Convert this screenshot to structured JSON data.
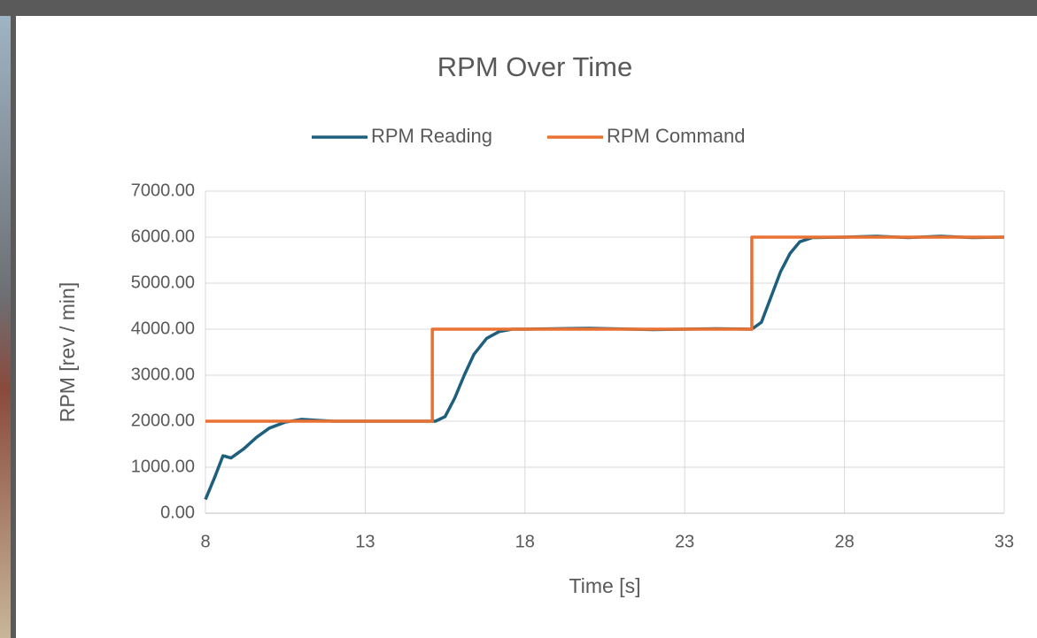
{
  "chart_data": {
    "type": "line",
    "title": "RPM Over Time",
    "x_label": "Time [s]",
    "y_label": "RPM [rev / min]",
    "xlim": [
      8,
      33
    ],
    "xticks": [
      8,
      13,
      18,
      23,
      28,
      33
    ],
    "ylim": [
      0,
      7000
    ],
    "yticks": [
      {
        "value": 0,
        "label": "0.00"
      },
      {
        "value": 1000,
        "label": "1000.00"
      },
      {
        "value": 2000,
        "label": "2000.00"
      },
      {
        "value": 3000,
        "label": "3000.00"
      },
      {
        "value": 4000,
        "label": "4000.00"
      },
      {
        "value": 5000,
        "label": "5000.00"
      },
      {
        "value": 6000,
        "label": "6000.00"
      },
      {
        "value": 7000,
        "label": "7000.00"
      }
    ],
    "grid": true,
    "legend": "top",
    "series": [
      {
        "name": "RPM Reading",
        "color": "#1d5f7c",
        "x": [
          8,
          8.3,
          8.55,
          8.8,
          9.2,
          9.6,
          10,
          10.5,
          11,
          11.5,
          12,
          14,
          15.2,
          15.5,
          15.8,
          16.1,
          16.4,
          16.8,
          17.2,
          17.6,
          18,
          20,
          22,
          24,
          25.1,
          25.4,
          25.7,
          26,
          26.3,
          26.6,
          27,
          28,
          29,
          30,
          31,
          32,
          33
        ],
        "values": [
          300,
          800,
          1250,
          1200,
          1400,
          1650,
          1850,
          1980,
          2040,
          2020,
          2000,
          2000,
          2000,
          2100,
          2500,
          3000,
          3450,
          3800,
          3950,
          4000,
          4000,
          4020,
          3990,
          4010,
          4000,
          4150,
          4700,
          5250,
          5650,
          5900,
          5990,
          6000,
          6020,
          5990,
          6020,
          5990,
          6000
        ]
      },
      {
        "name": "RPM Command",
        "color": "#e97132",
        "x": [
          8,
          15.1,
          15.1,
          25.1,
          25.1,
          33
        ],
        "values": [
          2000,
          2000,
          4000,
          4000,
          6000,
          6000
        ]
      }
    ]
  }
}
